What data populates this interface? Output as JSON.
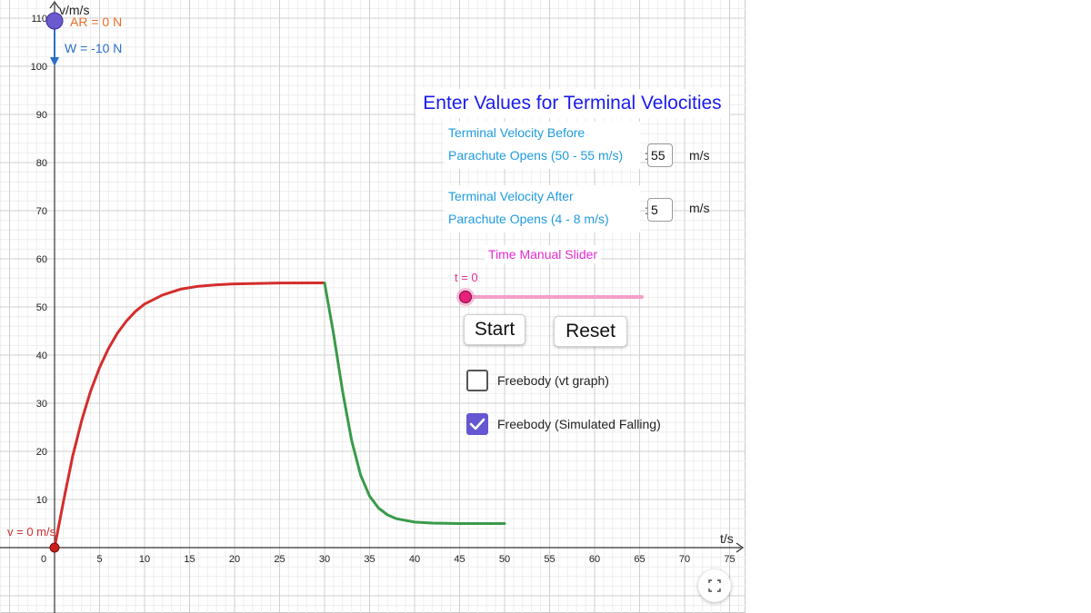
{
  "graph": {
    "y_axis_label": "v/m/s",
    "x_axis_label": "t/s",
    "origin_label": "0",
    "x_ticks": [
      "5",
      "10",
      "15",
      "20",
      "25",
      "30",
      "35",
      "40",
      "45",
      "50",
      "55",
      "60",
      "65",
      "70",
      "75"
    ],
    "y_ticks": [
      "10",
      "20",
      "30",
      "40",
      "50",
      "60",
      "70",
      "80",
      "90",
      "100",
      "110"
    ],
    "velocity_label": "v = 0 m/s",
    "freebody": {
      "air_resistance_label": "AR = 0 N",
      "weight_label": "W = -10 N",
      "ball_color": "#6a5acd",
      "ar_color": "#e8702a",
      "weight_color": "#2a6fc8"
    }
  },
  "chart_data": {
    "type": "line",
    "xlabel": "t/s",
    "ylabel": "v/m/s",
    "xlim": [
      0,
      75
    ],
    "ylim": [
      0,
      110
    ],
    "grid": true,
    "series": [
      {
        "color": "#d42d2d",
        "x": [
          0,
          1,
          2,
          3,
          4,
          5,
          6,
          7,
          8,
          9,
          10,
          12,
          14,
          16,
          18,
          20,
          25,
          30
        ],
        "y": [
          0,
          9.7,
          18.9,
          26.3,
          32.5,
          37.4,
          41.4,
          44.6,
          47.1,
          49.1,
          50.6,
          52.5,
          53.7,
          54.3,
          54.6,
          54.8,
          54.98,
          55
        ]
      },
      {
        "color": "#3a9a4a",
        "x": [
          30,
          31,
          32,
          33,
          34,
          35,
          36,
          37,
          38,
          40,
          42,
          45,
          50
        ],
        "y": [
          55,
          44.4,
          32.5,
          22.3,
          15.1,
          10.7,
          8.2,
          6.8,
          6.0,
          5.3,
          5.1,
          5.0,
          5.0
        ]
      }
    ]
  },
  "panel": {
    "title": "Enter Values for Terminal Velocities",
    "before": {
      "label_line1": "Terminal Velocity Before",
      "label_line2": "Parachute Opens (50 - 55 m/s)",
      "value": "55",
      "unit": "m/s"
    },
    "after": {
      "label_line1": "Terminal Velocity After",
      "label_line2": "Parachute Opens (4 - 8 m/s)",
      "value": "5",
      "unit": "m/s"
    },
    "colon": ":"
  },
  "slider": {
    "title": "Time Manual Slider",
    "value_label": "t = 0",
    "value_fraction": 0
  },
  "buttons": {
    "start": "Start",
    "reset": "Reset"
  },
  "checkboxes": {
    "vt_graph": {
      "label": "Freebody (vt graph)",
      "checked": false
    },
    "simulated": {
      "label": "Freebody (Simulated Falling)",
      "checked": true
    }
  }
}
